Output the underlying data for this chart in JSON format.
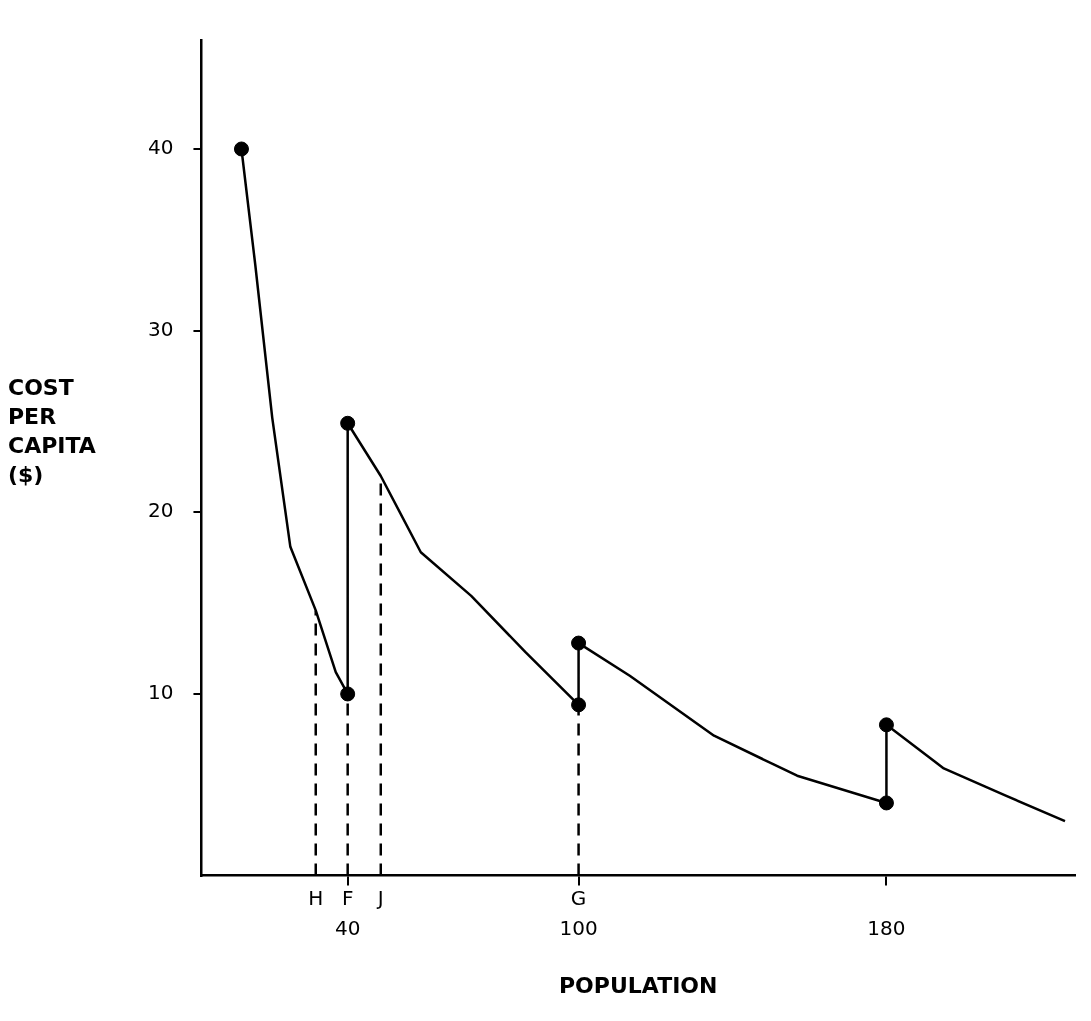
{
  "chart_data": {
    "type": "line",
    "xlabel": "POPULATION",
    "ylabel": "COST PER CAPITA ($)",
    "xlim": [
      2,
      229
    ],
    "ylim": [
      0,
      46
    ],
    "xticks": [
      40,
      100,
      180
    ],
    "yticks": [
      10,
      20,
      30,
      40
    ],
    "grid": false,
    "series": [
      {
        "color": "#000000",
        "marker": "none",
        "line_style": "solid",
        "x": [
          12.4,
          16,
          20.4,
          25.1,
          31.7,
          36.9,
          40,
          40,
          48.6,
          59,
          72.1,
          86.2,
          100,
          100,
          113.3,
          135.2,
          156.8,
          180,
          180,
          194.9,
          211,
          226.4
        ],
        "values": [
          40,
          33.6,
          25.2,
          18.1,
          14.6,
          11.2,
          10,
          24.9,
          22,
          17.8,
          15.4,
          12.3,
          9.4,
          12.8,
          11,
          7.7,
          5.5,
          4,
          8.3,
          5.9,
          4.4,
          3
        ]
      },
      {
        "type": "scatter",
        "color": "#000000",
        "marker": "circle",
        "x": [
          12.4,
          40,
          40,
          100,
          100,
          180,
          180
        ],
        "values": [
          40,
          10,
          24.9,
          9.4,
          12.8,
          4,
          8.3
        ]
      },
      {
        "type": "line",
        "color": "#000000",
        "marker": "none",
        "line_style": "dashed",
        "x": [
          31.7,
          31.7
        ],
        "values": [
          0,
          14.6
        ]
      },
      {
        "type": "line",
        "color": "#000000",
        "marker": "none",
        "line_style": "dashed",
        "x": [
          40,
          40
        ],
        "values": [
          0,
          10
        ]
      },
      {
        "type": "line",
        "color": "#000000",
        "marker": "none",
        "line_style": "dashed",
        "x": [
          48.6,
          48.6
        ],
        "values": [
          0,
          22
        ]
      },
      {
        "type": "line",
        "color": "#000000",
        "marker": "none",
        "line_style": "dashed",
        "x": [
          100,
          100
        ],
        "values": [
          0,
          9.4
        ]
      }
    ],
    "annotations": [
      {
        "text": "H",
        "x": 31.7,
        "y": 0
      },
      {
        "text": "F",
        "x": 40,
        "y": 0
      },
      {
        "text": "J",
        "x": 48.6,
        "y": 0
      },
      {
        "text": "G",
        "x": 100,
        "y": 0
      }
    ]
  }
}
